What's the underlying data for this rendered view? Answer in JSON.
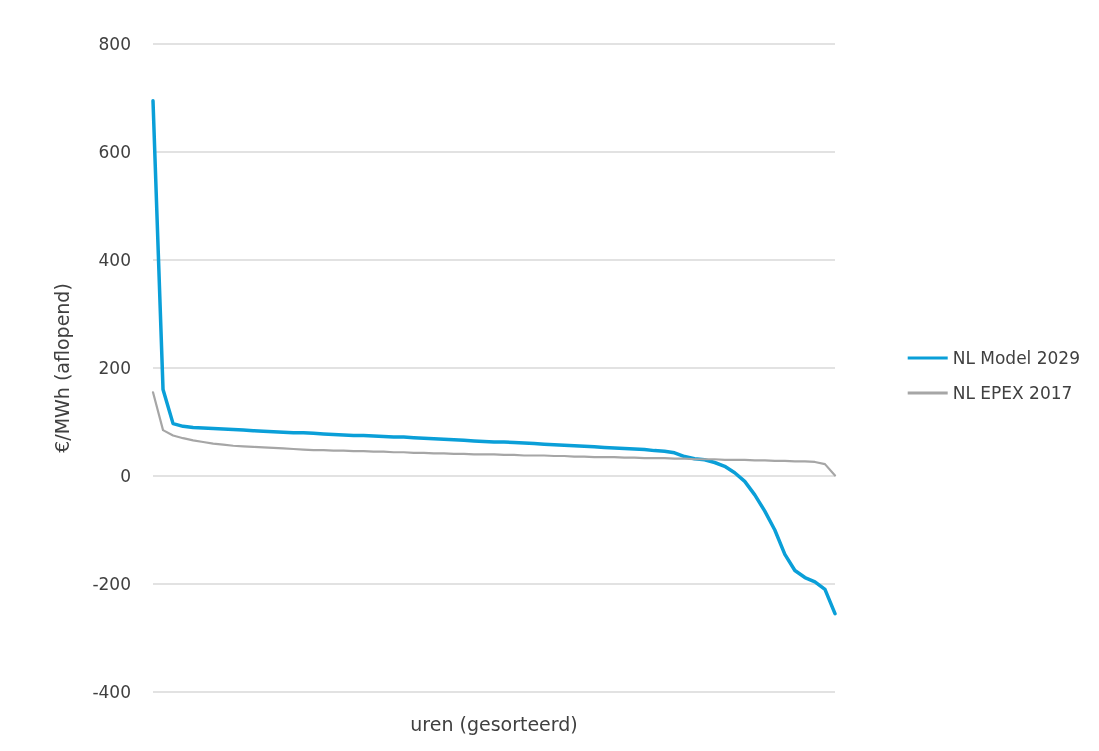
{
  "chart_data": {
    "type": "line",
    "xlabel": "uren (gesorteerd)",
    "ylabel": "€/MWh (aflopend)",
    "categories": [
      null,
      null,
      null,
      null,
      null,
      null,
      null,
      null,
      null,
      null,
      null,
      null,
      null,
      null,
      null,
      null,
      null,
      null,
      null,
      null,
      null,
      null,
      null,
      null,
      null,
      null,
      null,
      null,
      null,
      null,
      null,
      null,
      null,
      null,
      null,
      null,
      null,
      null,
      null,
      null,
      null,
      null,
      null,
      null,
      null,
      null,
      null,
      null,
      null,
      null,
      null,
      null,
      null,
      null,
      null,
      null,
      null,
      null,
      null,
      null,
      null,
      null,
      null,
      null,
      null,
      null,
      null,
      null,
      null
    ],
    "series": [
      {
        "name": "NL Model 2029",
        "color": "#0a9fd8",
        "values": [
          695,
          160,
          97,
          92,
          90,
          89,
          88,
          87,
          86,
          85,
          84,
          83,
          82,
          81,
          80,
          80,
          79,
          78,
          77,
          76,
          75,
          75,
          74,
          73,
          72,
          72,
          71,
          70,
          69,
          68,
          67,
          66,
          65,
          64,
          63,
          63,
          62,
          61,
          60,
          59,
          58,
          57,
          56,
          55,
          54,
          53,
          52,
          51,
          50,
          49,
          47,
          46,
          43,
          36,
          32,
          30,
          25,
          18,
          6,
          -10,
          -35,
          -65,
          -100,
          -145,
          -175,
          -188,
          -196,
          -210,
          -255
        ]
      },
      {
        "name": "NL EPEX 2017",
        "color": "#a6a6a6",
        "values": [
          155,
          85,
          75,
          70,
          66,
          63,
          60,
          58,
          56,
          55,
          54,
          53,
          52,
          51,
          50,
          49,
          48,
          48,
          47,
          47,
          46,
          46,
          45,
          45,
          44,
          44,
          43,
          43,
          42,
          42,
          41,
          41,
          40,
          40,
          40,
          39,
          39,
          38,
          38,
          38,
          37,
          37,
          36,
          36,
          35,
          35,
          35,
          34,
          34,
          33,
          33,
          33,
          32,
          32,
          31,
          31,
          31,
          30,
          30,
          30,
          29,
          29,
          28,
          28,
          27,
          27,
          26,
          22,
          1
        ]
      }
    ],
    "ylim": [
      -400,
      800
    ],
    "yticks": [
      -400,
      -200,
      0,
      200,
      400,
      600,
      800
    ],
    "grid": "y",
    "legend": "right",
    "tick_labels": "y",
    "marker": "none",
    "line_style": "solid"
  }
}
